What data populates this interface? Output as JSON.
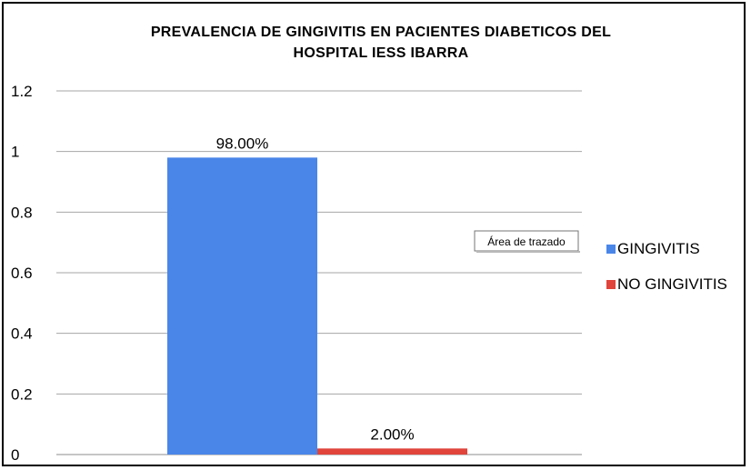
{
  "chart_data": {
    "type": "bar",
    "title_lines": [
      "PREVALENCIA  DE GINGIVITIS EN PACIENTES DIABETICOS DEL",
      "HOSPITAL IESS IBARRA"
    ],
    "xlabel": "",
    "ylabel": "",
    "ylim": [
      0,
      1.2
    ],
    "yticks": [
      "0",
      "0.2",
      "0.4",
      "0.6",
      "0.8",
      "1",
      "1.2"
    ],
    "grid": true,
    "legend_position": "right",
    "series": [
      {
        "name": "GINGIVITIS",
        "value": 0.98,
        "data_label": "98.00%",
        "color": "#4a86e8"
      },
      {
        "name": "NO GINGIVITIS",
        "value": 0.02,
        "data_label": "2.00%",
        "color": "#e0443a"
      }
    ]
  },
  "tooltip": {
    "text": "Área de trazado"
  }
}
